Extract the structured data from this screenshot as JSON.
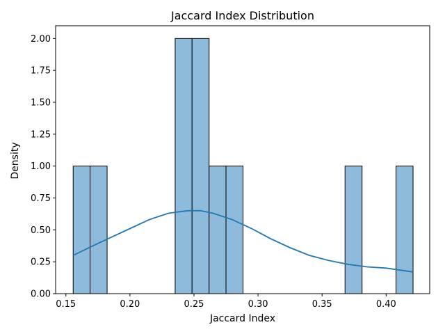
{
  "chart_data": {
    "type": "bar",
    "title": "Jaccard Index Distribution",
    "xlabel": "Jaccard Index",
    "ylabel": "Density",
    "xlim": [
      0.142,
      0.434
    ],
    "ylim": [
      0,
      2.1
    ],
    "xticks": [
      "0.15",
      "0.20",
      "0.25",
      "0.30",
      "0.35",
      "0.40"
    ],
    "yticks": [
      "0.00",
      "0.25",
      "0.50",
      "0.75",
      "1.00",
      "1.25",
      "1.50",
      "1.75",
      "2.00"
    ],
    "grid": false,
    "bar_color": "#8ebbdb",
    "bar_edge_color": "#000000",
    "line_color": "#1f77b4",
    "bins": [
      {
        "start": 0.1557,
        "end": 0.1689,
        "density": 1.0
      },
      {
        "start": 0.1689,
        "end": 0.1822,
        "density": 1.0
      },
      {
        "start": 0.2353,
        "end": 0.2485,
        "density": 2.0
      },
      {
        "start": 0.2485,
        "end": 0.2618,
        "density": 2.0
      },
      {
        "start": 0.2618,
        "end": 0.275,
        "density": 1.0
      },
      {
        "start": 0.275,
        "end": 0.2883,
        "density": 1.0
      },
      {
        "start": 0.3679,
        "end": 0.3812,
        "density": 1.0
      },
      {
        "start": 0.4077,
        "end": 0.421,
        "density": 1.0
      }
    ],
    "kde": {
      "x": [
        0.1557,
        0.17,
        0.185,
        0.2,
        0.215,
        0.23,
        0.245,
        0.255,
        0.265,
        0.28,
        0.295,
        0.31,
        0.325,
        0.34,
        0.355,
        0.37,
        0.385,
        0.4,
        0.421
      ],
      "y": [
        0.3,
        0.37,
        0.44,
        0.51,
        0.58,
        0.63,
        0.65,
        0.65,
        0.63,
        0.58,
        0.51,
        0.43,
        0.36,
        0.3,
        0.26,
        0.23,
        0.21,
        0.2,
        0.17
      ]
    }
  }
}
